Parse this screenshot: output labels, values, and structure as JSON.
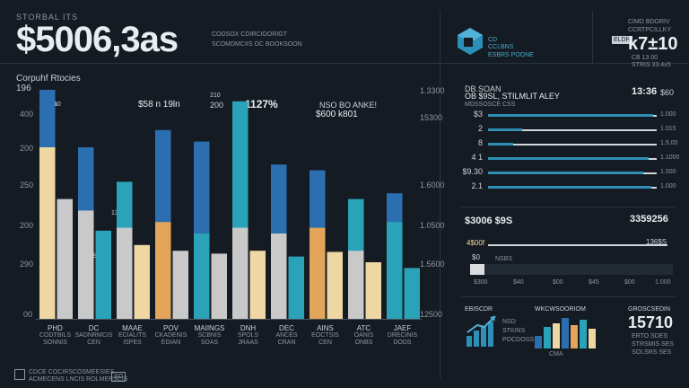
{
  "header": {
    "top_label": "STORBAL ITS",
    "big_value": "$5006,3as",
    "caption_lines": [
      "CODSOX CDIRCIOORIGT",
      "SCOMDMCIIS OC BOOKSOON"
    ],
    "right_small": [
      "CIMD BDORIV",
      "CCRTPCILLKY"
    ],
    "right_badge": "ELDR",
    "right_value": "k7±10",
    "right_sub": [
      "CB 13 00",
      "STRIS 33.4±5"
    ]
  },
  "logo": {
    "text_lines": [
      "CD",
      "CCLBNS",
      "ESBRS POONE"
    ],
    "color": "#2b8fb8"
  },
  "chart": {
    "title": "Corpuhf Rtocies",
    "subtitle": "196",
    "annotations": {
      "mid_a": "$58 n 19ln",
      "mid_b": "200",
      "mid_c": "210",
      "pct": "~1127%",
      "note_top": "NSO BO ANKE!",
      "note_value": "$600 k801",
      "left_val": "130",
      "left_val2": "9.0.",
      "lbl_top": "1.5",
      "lbl_top2": "10"
    },
    "y_left": [
      "400",
      "200",
      "250",
      "200",
      "290",
      "00"
    ],
    "y_right": [
      "1.3300",
      "15300",
      "1.6000",
      "1.0500",
      "1.5600",
      "12500"
    ],
    "x_labels": [
      [
        "PHD",
        "CODTBILS",
        "SONNIS"
      ],
      [
        "DC",
        "SADNRMCIS",
        "CEN"
      ],
      [
        "MAAE",
        "ECIALITS",
        "ISPES"
      ],
      [
        "POV",
        "CKADENIS",
        "EDIAN"
      ],
      [
        "MAIINGS",
        "SCBNIS",
        "SOAS"
      ],
      [
        "DNH",
        "SPOLS",
        "JRAAS"
      ],
      [
        "DEC",
        "ANCES",
        "CRAN"
      ],
      [
        "AINS",
        "EOCTSIS",
        "CEN"
      ],
      [
        "ATC",
        "OANIS",
        "ONBS"
      ],
      [
        "JAEF",
        "DRECINIS",
        "DODS"
      ]
    ]
  },
  "chart_data": {
    "type": "bar",
    "categories": [
      "PHD",
      "DC",
      "MAAE",
      "POV",
      "MAIINGS",
      "DNH",
      "DEC",
      "AINS",
      "ATC",
      "JAEF"
    ],
    "series": [
      {
        "values": [
          400,
          300,
          240,
          330,
          310,
          380,
          270,
          260,
          210,
          220
        ]
      },
      {
        "values": [
          300,
          190,
          160,
          170,
          150,
          160,
          150,
          160,
          120,
          170
        ]
      },
      {
        "values": [
          210,
          155,
          130,
          120,
          115,
          120,
          110,
          118,
          100,
          90
        ]
      }
    ],
    "ylim": [
      0,
      400
    ]
  },
  "right_panel": {
    "title_line1": "DB.SOAN",
    "title_line2": "OB $9SL, STILMLIT ALEY",
    "title_line3": "MDSSOSCE CSS",
    "top_value": "13:36",
    "top_unit": "$60",
    "rows": [
      {
        "label": "$3",
        "value": "1.000",
        "fill": 0.98
      },
      {
        "label": "2",
        "value": "1.015",
        "fill": 0.2
      },
      {
        "label": "8",
        "value": "1.5.00",
        "fill": 0.15
      },
      {
        "label": "4 1",
        "value": "1.1000",
        "fill": 0.95
      },
      {
        "label": "$9.30",
        "value": "1.000",
        "fill": 0.92
      },
      {
        "label": "2.1",
        "value": "1.000",
        "fill": 0.97
      }
    ],
    "second_title": "$3006 $9S",
    "second_value": "3359256",
    "second_row_label": "4$00f",
    "second_row_value": "136$S",
    "third_row_label": "$0",
    "third_row_text": "NSBS",
    "x_ticks": [
      "$300",
      "$40",
      "$00",
      "$45",
      "$00",
      "1.000"
    ],
    "progress_fill": 0.07
  },
  "mini_cards": [
    {
      "title": "EBISCDR",
      "lines": [
        "NSD",
        "STKINS",
        "POCDOSS"
      ]
    },
    {
      "title": "WKCWSOORIOM",
      "lines": [
        "CMA"
      ]
    },
    {
      "title": "GROSCSEDIN",
      "value": "15710",
      "lines": [
        "ERTO SDES",
        "STRSMIS SES",
        "SOLSRS SES"
      ]
    }
  ],
  "footer": {
    "line1": "CDCE COCIRSCOSMEESIES",
    "line2": "ACMECENS LNCIS ROLMERSCIS",
    "badge": "SO"
  },
  "colors": {
    "background": "#151b22",
    "blue": "#2b6fb0",
    "cream": "#efd7a4",
    "teal": "#2aa2b8",
    "orange": "#e2a55a",
    "grey": "#c9c9c9"
  }
}
